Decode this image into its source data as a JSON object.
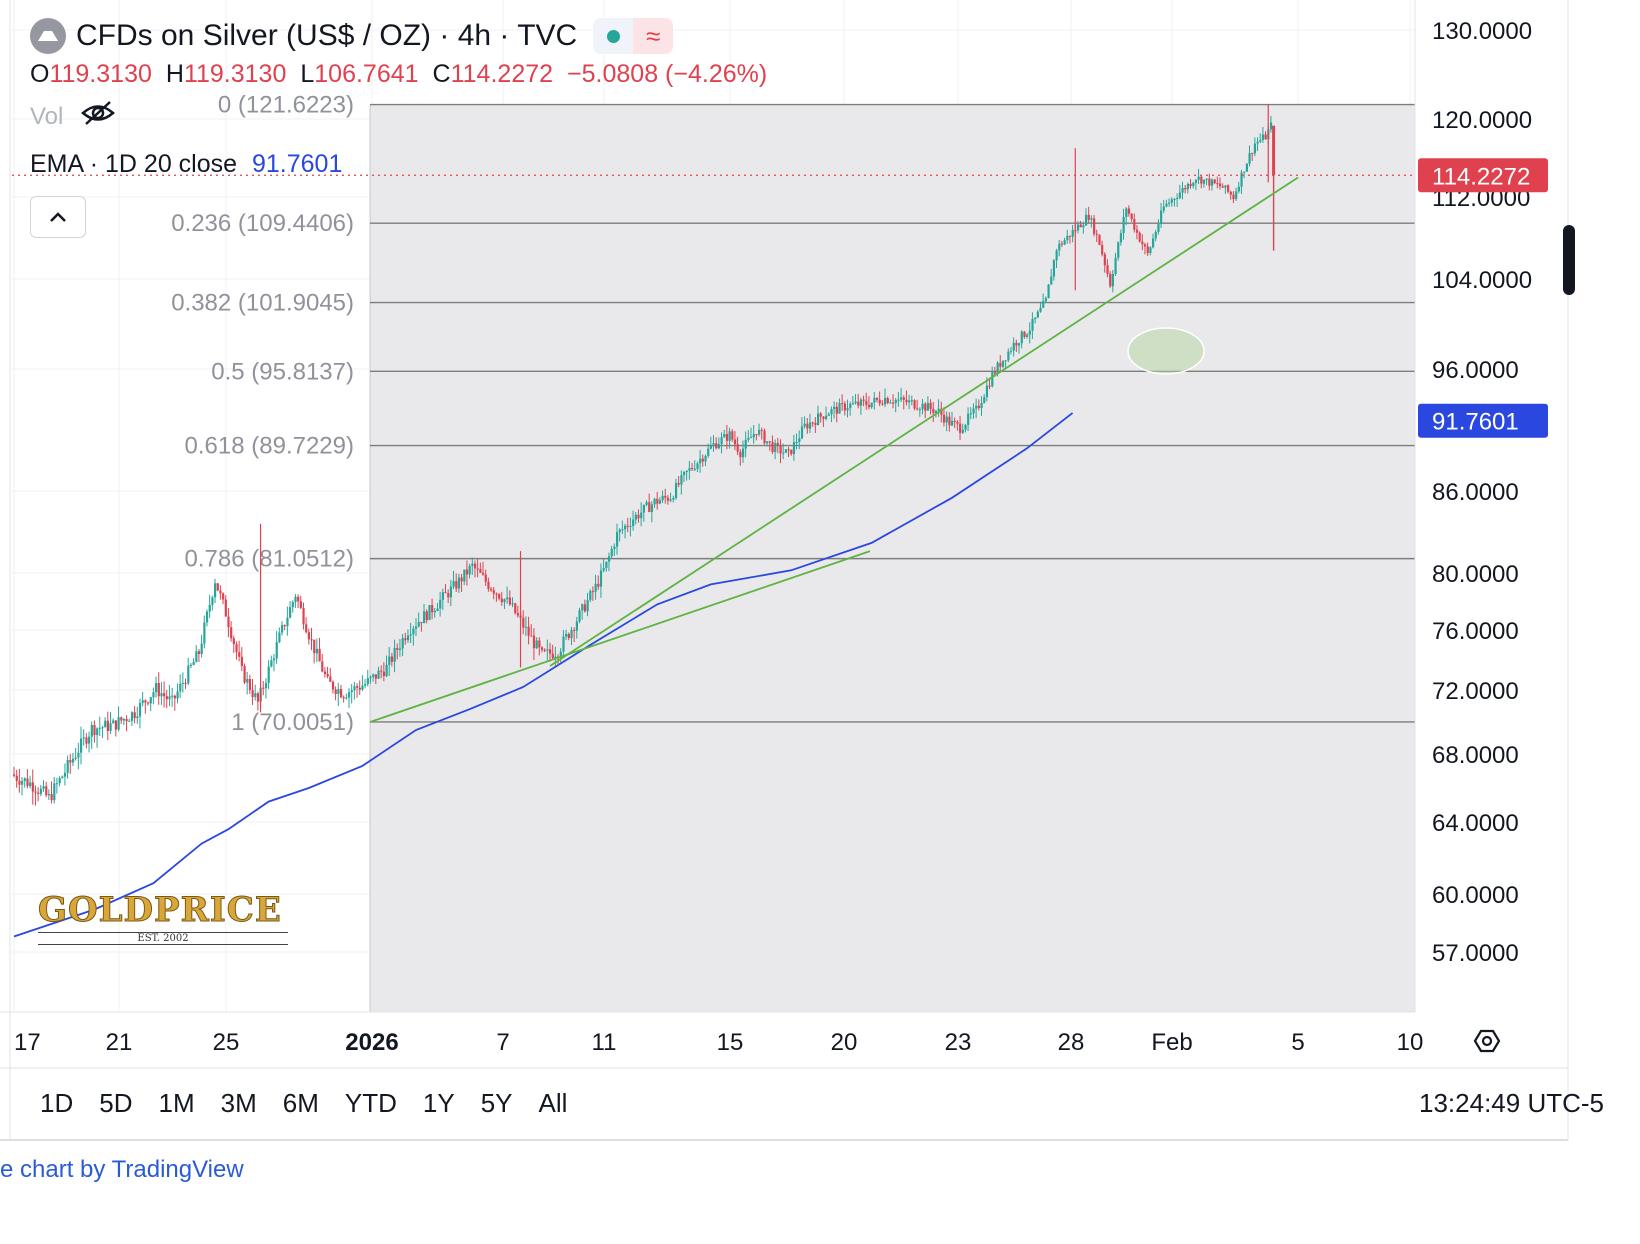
{
  "header": {
    "title": "CFDs on Silver (US$ / OZ) · 4h · TVC",
    "ohlc": [
      {
        "key": "O",
        "value": "119.3130"
      },
      {
        "key": "H",
        "value": "119.3130"
      },
      {
        "key": "L",
        "value": "106.7641"
      },
      {
        "key": "C",
        "value": "114.2272"
      },
      {
        "key": "",
        "value": "−5.0808 (−4.26%)"
      }
    ],
    "vol_label": "Vol",
    "ema_label": "EMA · 1D 20 close",
    "ema_value": "91.7601",
    "status_icon": "status-dot-icon",
    "data_icon": "wave-icon"
  },
  "colors": {
    "up": "#26a69a",
    "down": "#e0414f",
    "ema": "#2a47e0",
    "trendline": "#5fb343",
    "fib": "#7d7d7d",
    "price_tag": "#e0414f",
    "ema_tag": "#2a47e0",
    "shade": "#e9e9eb"
  },
  "chart_data": {
    "type": "candlestick",
    "y_axis_labels": [
      "130.0000",
      "120.0000",
      "112.0000",
      "104.0000",
      "96.0000",
      "91.7601",
      "86.0000",
      "80.0000",
      "76.0000",
      "72.0000",
      "68.0000",
      "64.0000",
      "60.0000",
      "57.0000"
    ],
    "y_axis_values": [
      130,
      120,
      112,
      104,
      96,
      86,
      80,
      76,
      72,
      68,
      64,
      60,
      57
    ],
    "x_axis_labels": [
      "17",
      "21",
      "25",
      "2026",
      "7",
      "11",
      "15",
      "20",
      "23",
      "28",
      "Feb",
      "5",
      "10"
    ],
    "last_price_label": "114.2272",
    "ema_price_label": "91.7601",
    "fib_levels": [
      {
        "label": "0 (121.6223)",
        "value": 121.6223
      },
      {
        "label": "0.236 (109.4406)",
        "value": 109.4406
      },
      {
        "label": "0.382 (101.9045)",
        "value": 101.9045
      },
      {
        "label": "0.5 (95.8137)",
        "value": 95.8137
      },
      {
        "label": "0.618 (89.7229)",
        "value": 89.7229
      },
      {
        "label": "0.786 (81.0512)",
        "value": 81.0512
      },
      {
        "label": "1 (70.0051)",
        "value": 70.0051
      }
    ],
    "ema_points": [
      [
        0,
        57.8
      ],
      [
        30,
        59.2
      ],
      [
        52,
        60.6
      ],
      [
        70,
        62.8
      ],
      [
        80,
        63.6
      ],
      [
        95,
        65.2
      ],
      [
        110,
        66.0
      ],
      [
        130,
        67.3
      ],
      [
        150,
        69.5
      ],
      [
        170,
        70.8
      ],
      [
        190,
        72.2
      ],
      [
        215,
        75.0
      ],
      [
        240,
        77.8
      ],
      [
        260,
        79.2
      ],
      [
        290,
        80.2
      ],
      [
        320,
        82.2
      ],
      [
        350,
        85.5
      ],
      [
        378,
        89.5
      ],
      [
        395,
        92.4
      ]
    ],
    "candles": "generated path: Dec 17 ≈ 67 → Dec 26 peak 80 → Dec 31 low 70 → Jan 6 peak 81.5 → Jan 9 low 74 → Jan 14 ≈ 91 → Jan 20 ≈ 94 → Jan 22 low 88.5 → Jan 26 spike 117 → Jan 29 high 121.6 → last O 119.313 H 119.313 L 106.7641 C 114.2272"
  },
  "range_buttons": [
    "1D",
    "5D",
    "1M",
    "3M",
    "6M",
    "YTD",
    "1Y",
    "5Y",
    "All"
  ],
  "clock": "13:24:49 UTC-5",
  "footer": "e chart by TradingView",
  "watermark": {
    "word": "GOLDPRICE",
    "est": "EST. 2002"
  }
}
